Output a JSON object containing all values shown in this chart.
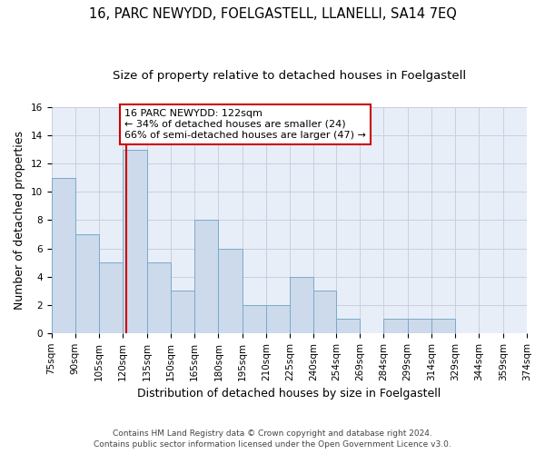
{
  "title_line1": "16, PARC NEWYDD, FOELGASTELL, LLANELLI, SA14 7EQ",
  "title_line2": "Size of property relative to detached houses in Foelgastell",
  "xlabel": "Distribution of detached houses by size in Foelgastell",
  "ylabel": "Number of detached properties",
  "footer_line1": "Contains HM Land Registry data © Crown copyright and database right 2024.",
  "footer_line2": "Contains public sector information licensed under the Open Government Licence v3.0.",
  "bar_edges": [
    75,
    90,
    105,
    120,
    135,
    150,
    165,
    180,
    195,
    210,
    225,
    240,
    254,
    269,
    284,
    299,
    314,
    329,
    344,
    359,
    374
  ],
  "bar_heights": [
    11,
    7,
    5,
    13,
    5,
    3,
    8,
    6,
    2,
    2,
    4,
    3,
    1,
    0,
    1,
    1,
    1,
    0,
    0,
    0
  ],
  "bar_color": "#ccdaeb",
  "bar_edgecolor": "#7aaacb",
  "grid_color": "#c8cfe0",
  "bg_color": "#e8eef8",
  "vline_x": 122,
  "vline_color": "#cc0000",
  "annotation_text": "16 PARC NEWYDD: 122sqm\n← 34% of detached houses are smaller (24)\n66% of semi-detached houses are larger (47) →",
  "annotation_box_color": "#cc0000",
  "ylim": [
    0,
    16
  ],
  "yticks": [
    0,
    2,
    4,
    6,
    8,
    10,
    12,
    14,
    16
  ],
  "title_fontsize": 10.5,
  "subtitle_fontsize": 9.5,
  "ylabel_fontsize": 9,
  "xlabel_fontsize": 9,
  "tick_fontsize": 7.5,
  "annotation_fontsize": 8,
  "footer_fontsize": 6.5
}
